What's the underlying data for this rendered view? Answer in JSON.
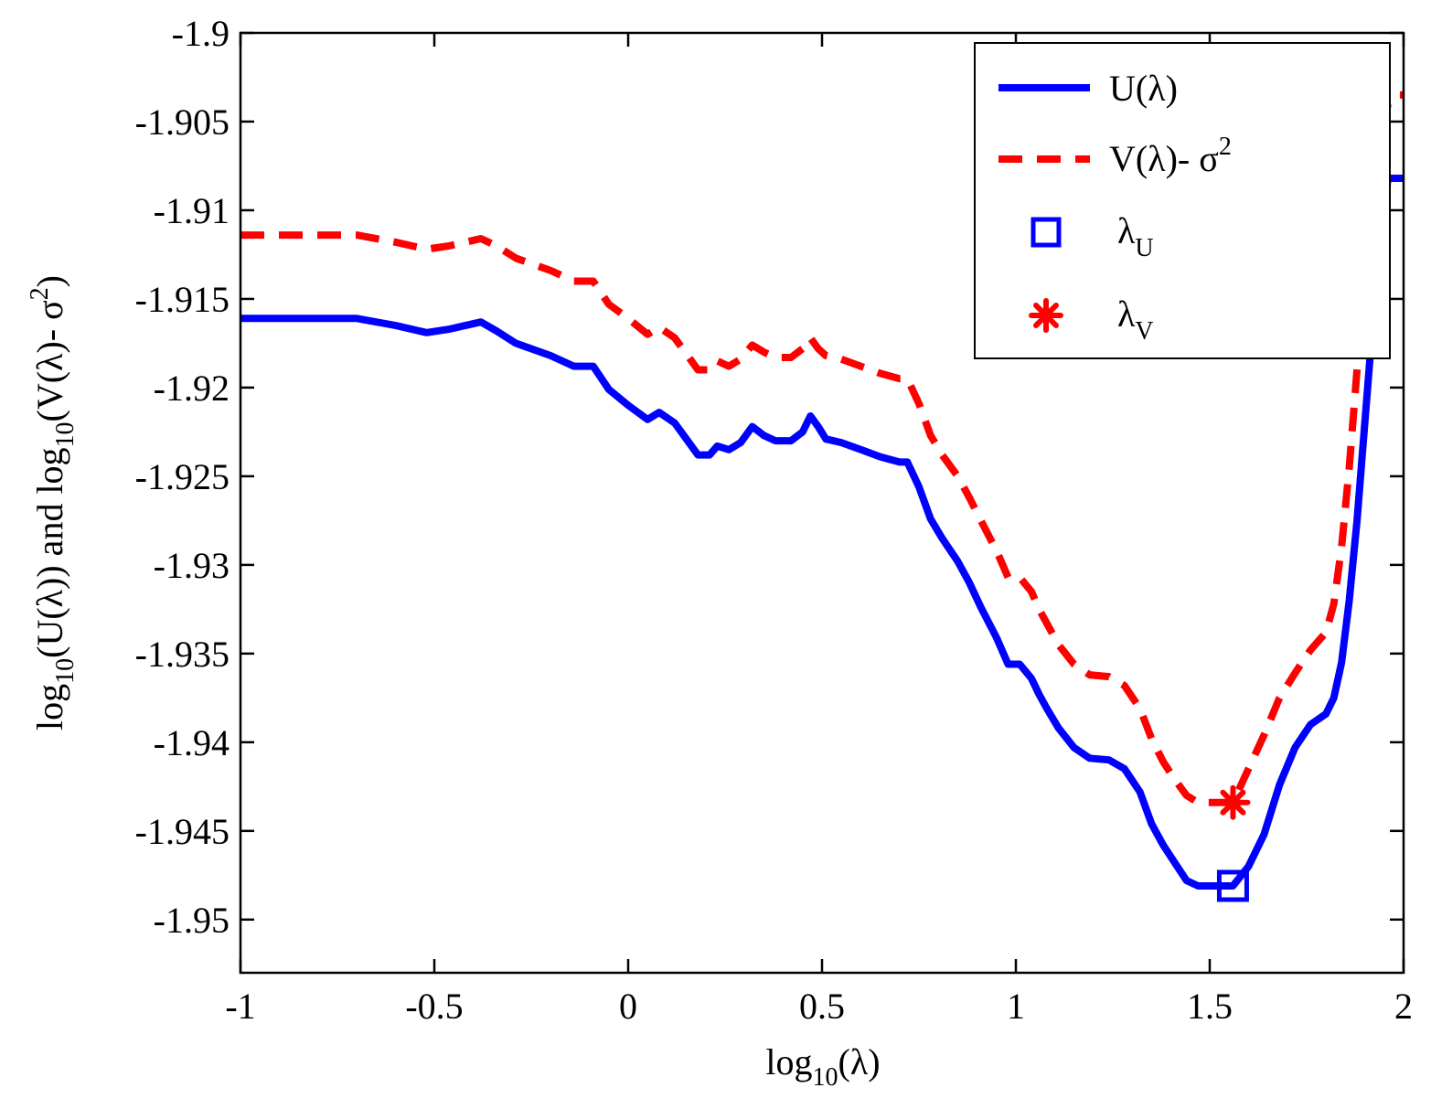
{
  "chart_data": {
    "type": "line",
    "title": "",
    "xlabel": "log10(λ)",
    "ylabel": "log10(U(λ)) and log10(V(λ)- σ2)",
    "xlim": [
      -1,
      2
    ],
    "ylim": [
      -1.953,
      -1.9
    ],
    "grid": false,
    "legend_position": "top-right",
    "x_tick_labels": [
      "-1",
      "-0.5",
      "0",
      "0.5",
      "1",
      "1.5",
      "2"
    ],
    "y_tick_labels": [
      "-1.9",
      "-1.905",
      "-1.91",
      "-1.915",
      "-1.92",
      "-1.925",
      "-1.93",
      "-1.935",
      "-1.94",
      "-1.945",
      "-1.95"
    ],
    "y_tick_values": [
      -1.9,
      -1.905,
      -1.91,
      -1.915,
      -1.92,
      -1.925,
      -1.93,
      -1.935,
      -1.94,
      -1.945,
      -1.95
    ],
    "x_tick_values": [
      -1,
      -0.5,
      0,
      0.5,
      1,
      1.5,
      2
    ],
    "series": [
      {
        "name": "U(λ)",
        "color": "#0000ff",
        "style": "solid",
        "x": [
          -1,
          -0.9,
          -0.8,
          -0.7,
          -0.6,
          -0.52,
          -0.46,
          -0.38,
          -0.34,
          -0.29,
          -0.2,
          -0.14,
          -0.09,
          -0.05,
          0,
          0.05,
          0.08,
          0.12,
          0.18,
          0.21,
          0.23,
          0.26,
          0.29,
          0.32,
          0.35,
          0.38,
          0.42,
          0.45,
          0.47,
          0.49,
          0.51,
          0.55,
          0.6,
          0.65,
          0.7,
          0.72,
          0.75,
          0.78,
          0.81,
          0.85,
          0.88,
          0.91,
          0.95,
          0.98,
          1.01,
          1.04,
          1.06,
          1.08,
          1.11,
          1.15,
          1.19,
          1.24,
          1.28,
          1.32,
          1.35,
          1.38,
          1.41,
          1.44,
          1.47,
          1.5,
          1.53,
          1.56,
          1.6,
          1.64,
          1.68,
          1.72,
          1.76,
          1.8,
          1.82,
          1.84,
          1.86,
          1.88,
          1.9,
          1.92,
          1.94,
          1.96,
          1.98,
          2
        ],
        "y": [
          -1.9161,
          -1.9161,
          -1.9161,
          -1.9161,
          -1.9165,
          -1.9169,
          -1.9167,
          -1.9163,
          -1.9168,
          -1.9175,
          -1.9182,
          -1.9188,
          -1.9188,
          -1.9201,
          -1.921,
          -1.9218,
          -1.9214,
          -1.922,
          -1.9238,
          -1.9238,
          -1.9233,
          -1.9235,
          -1.9231,
          -1.9222,
          -1.9227,
          -1.923,
          -1.923,
          -1.9225,
          -1.9216,
          -1.9222,
          -1.9229,
          -1.9231,
          -1.9235,
          -1.9239,
          -1.9242,
          -1.9242,
          -1.9256,
          -1.9274,
          -1.9285,
          -1.9298,
          -1.931,
          -1.9324,
          -1.9341,
          -1.9356,
          -1.9356,
          -1.9364,
          -1.9373,
          -1.9381,
          -1.9392,
          -1.9403,
          -1.9409,
          -1.941,
          -1.9415,
          -1.9428,
          -1.9446,
          -1.9458,
          -1.9468,
          -1.9478,
          -1.9481,
          -1.9481,
          -1.9481,
          -1.9481,
          -1.947,
          -1.9452,
          -1.9424,
          -1.9403,
          -1.939,
          -1.9384,
          -1.9375,
          -1.9355,
          -1.932,
          -1.9275,
          -1.922,
          -1.9165,
          -1.9115,
          -1.9082,
          -1.9082,
          -1.9082
        ]
      },
      {
        "name": "V(λ)- σ2",
        "color": "#ff0000",
        "style": "dashed",
        "x": [
          -1,
          -0.9,
          -0.8,
          -0.7,
          -0.6,
          -0.52,
          -0.46,
          -0.38,
          -0.34,
          -0.29,
          -0.2,
          -0.14,
          -0.09,
          -0.05,
          0,
          0.05,
          0.08,
          0.12,
          0.18,
          0.21,
          0.23,
          0.26,
          0.29,
          0.32,
          0.35,
          0.38,
          0.42,
          0.45,
          0.47,
          0.49,
          0.51,
          0.55,
          0.6,
          0.65,
          0.7,
          0.72,
          0.75,
          0.78,
          0.81,
          0.85,
          0.88,
          0.91,
          0.95,
          0.98,
          1.01,
          1.04,
          1.06,
          1.08,
          1.11,
          1.15,
          1.19,
          1.24,
          1.28,
          1.32,
          1.35,
          1.38,
          1.41,
          1.44,
          1.47,
          1.5,
          1.53,
          1.56,
          1.6,
          1.64,
          1.68,
          1.72,
          1.76,
          1.8,
          1.82,
          1.84,
          1.86,
          1.88,
          1.9,
          1.92,
          1.94,
          1.96,
          1.98,
          2
        ],
        "y": [
          -1.9114,
          -1.9114,
          -1.9114,
          -1.9114,
          -1.9118,
          -1.9122,
          -1.912,
          -1.9116,
          -1.912,
          -1.9127,
          -1.9134,
          -1.914,
          -1.914,
          -1.9153,
          -1.9161,
          -1.917,
          -1.9166,
          -1.9172,
          -1.919,
          -1.919,
          -1.9185,
          -1.9188,
          -1.9184,
          -1.9176,
          -1.918,
          -1.9183,
          -1.9183,
          -1.9178,
          -1.9172,
          -1.9178,
          -1.9182,
          -1.9184,
          -1.9188,
          -1.9192,
          -1.9195,
          -1.9195,
          -1.9209,
          -1.9227,
          -1.9238,
          -1.925,
          -1.9262,
          -1.9275,
          -1.9292,
          -1.9307,
          -1.9307,
          -1.9315,
          -1.9325,
          -1.9333,
          -1.9345,
          -1.9356,
          -1.9362,
          -1.9363,
          -1.9368,
          -1.9381,
          -1.9398,
          -1.9411,
          -1.9421,
          -1.943,
          -1.9434,
          -1.9434,
          -1.9434,
          -1.9434,
          -1.9415,
          -1.9396,
          -1.9375,
          -1.9361,
          -1.9348,
          -1.9338,
          -1.9322,
          -1.929,
          -1.9245,
          -1.919,
          -1.914,
          -1.9094,
          -1.906,
          -1.904,
          -1.9035,
          -1.9035
        ]
      }
    ],
    "markers": [
      {
        "name": "λU",
        "shape": "square",
        "color": "#0000ff",
        "x": 1.56,
        "y": -1.9481
      },
      {
        "name": "λV",
        "shape": "asterisk",
        "color": "#ff0000",
        "x": 1.56,
        "y": -1.9434
      }
    ]
  },
  "legend": {
    "u_label": "U(λ)",
    "v_label_main": "V(λ)- σ",
    "v_label_sup": "2",
    "lu_label_main": "λ",
    "lu_label_sub": "U",
    "lv_label_main": "λ",
    "lv_label_sub": "V"
  },
  "axis_text": {
    "x_log": "log",
    "x_sub": "10",
    "x_arg": "(λ)",
    "y_log1": "log",
    "y_sub1": "10",
    "y_mid": "(U(λ)) and log",
    "y_sub2": "10",
    "y_end": "(V(λ)- σ",
    "y_sup": "2",
    "y_close": ")"
  }
}
